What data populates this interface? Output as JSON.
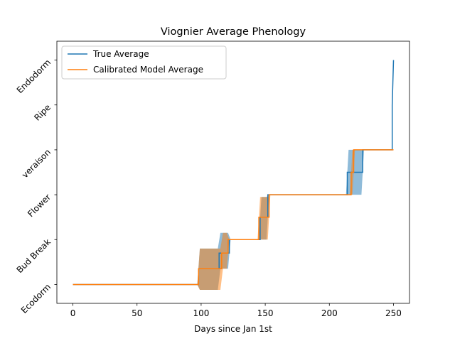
{
  "chart_data": {
    "type": "line",
    "title": "Viognier Average Phenology",
    "xlabel": "Days since Jan 1st",
    "ylabel": "",
    "xlim": [
      -12.5,
      262.5
    ],
    "ylim": [
      -0.42,
      5.42
    ],
    "xticks": [
      0,
      50,
      100,
      150,
      200,
      250
    ],
    "ytick_labels": [
      "Ecodorm",
      "Bud Break",
      "Flower",
      "veraison",
      "Ripe",
      "Endodorm"
    ],
    "legend": {
      "position": "top-left",
      "entries": [
        "True Average",
        "Calibrated Model Average"
      ]
    },
    "series": [
      {
        "name": "True Average",
        "color": "#1f77b4",
        "x": [
          0,
          98,
          98,
          114,
          114,
          122,
          122,
          146,
          146,
          152,
          152,
          214,
          214,
          226,
          226,
          249,
          249,
          250
        ],
        "y": [
          0,
          0,
          0.35,
          0.35,
          0.7,
          0.7,
          1.0,
          1.0,
          1.5,
          1.5,
          2.0,
          2.0,
          2.5,
          2.5,
          3.0,
          3.0,
          4.0,
          5.0
        ],
        "band": {
          "x": [
            97,
            99,
            113,
            115,
            121,
            123,
            145,
            147,
            151,
            153,
            213,
            215,
            225,
            227
          ],
          "lower": [
            0,
            -0.12,
            -0.12,
            0.35,
            0.35,
            1.0,
            1.0,
            1.0,
            1.0,
            2.0,
            2.0,
            2.0,
            2.0,
            3.0
          ],
          "upper": [
            0,
            0.8,
            0.8,
            1.15,
            1.15,
            1.0,
            1.0,
            1.95,
            1.95,
            2.0,
            2.0,
            3.0,
            3.0,
            3.0
          ]
        }
      },
      {
        "name": "Calibrated Model Average",
        "color": "#ff7f0e",
        "x": [
          0,
          98,
          98,
          116,
          116,
          121,
          121,
          145,
          145,
          149,
          149,
          153,
          153,
          217,
          217,
          219,
          219,
          250
        ],
        "y": [
          0,
          0,
          0.35,
          0.35,
          0.7,
          0.7,
          1.0,
          1.0,
          1.5,
          1.5,
          1.5,
          1.5,
          2.0,
          2.0,
          2.5,
          2.5,
          3.0,
          3.0
        ],
        "band": {
          "x": [
            97,
            99,
            115,
            117,
            120,
            122,
            144,
            146,
            152,
            154,
            216,
            218,
            220,
            222
          ],
          "lower": [
            0,
            -0.12,
            -0.12,
            0.35,
            0.35,
            1.0,
            1.0,
            1.0,
            1.0,
            2.0,
            2.0,
            2.0,
            3.0,
            3.0
          ],
          "upper": [
            0,
            0.8,
            0.8,
            1.15,
            1.15,
            1.0,
            1.0,
            1.95,
            1.95,
            2.0,
            2.0,
            3.0,
            3.0,
            3.0
          ]
        }
      }
    ]
  }
}
